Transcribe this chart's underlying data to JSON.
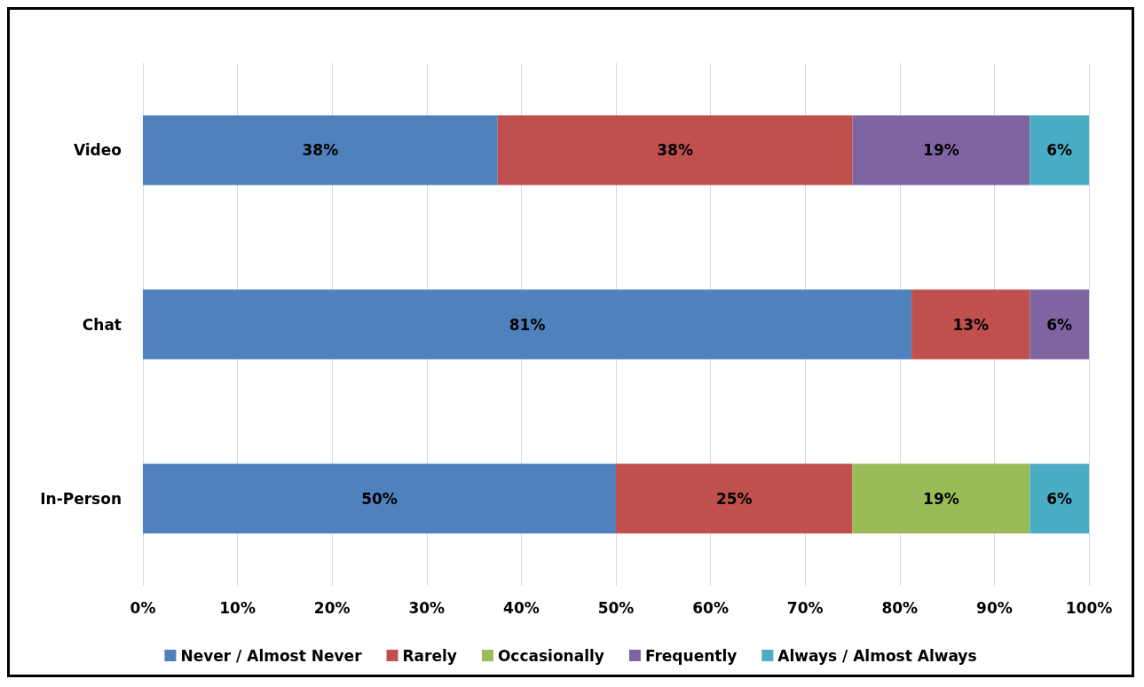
{
  "chart_data": {
    "type": "bar",
    "orientation": "horizontal",
    "stacked": true,
    "categories": [
      "Video",
      "Chat",
      "In-Person"
    ],
    "series": [
      {
        "name": "Never / Almost Never",
        "color": "#4f81bd",
        "values": [
          37.5,
          81.25,
          50
        ],
        "value_labels": [
          "38%",
          "81%",
          "50%"
        ]
      },
      {
        "name": "Rarely",
        "color": "#c0504d",
        "values": [
          37.5,
          12.5,
          25
        ],
        "value_labels": [
          "38%",
          "13%",
          "25%"
        ]
      },
      {
        "name": "Occasionally",
        "color": "#9bbb59",
        "values": [
          null,
          null,
          18.75
        ],
        "value_labels": [
          null,
          null,
          "19%"
        ]
      },
      {
        "name": "Frequently",
        "color": "#8064a2",
        "values": [
          18.75,
          6.25,
          null
        ],
        "value_labels": [
          "19%",
          "6%",
          null
        ]
      },
      {
        "name": "Always / Almost Always",
        "color": "#4bacc6",
        "values": [
          6.25,
          null,
          6.25
        ],
        "value_labels": [
          "6%",
          null,
          "6%"
        ]
      }
    ],
    "xlim": [
      0,
      100
    ],
    "xticks": [
      {
        "value": 0,
        "label": "0%"
      },
      {
        "value": 10,
        "label": "10%"
      },
      {
        "value": 20,
        "label": "20%"
      },
      {
        "value": 30,
        "label": "30%"
      },
      {
        "value": 40,
        "label": "40%"
      },
      {
        "value": 50,
        "label": "50%"
      },
      {
        "value": 60,
        "label": "60%"
      },
      {
        "value": 70,
        "label": "70%"
      },
      {
        "value": 80,
        "label": "80%"
      },
      {
        "value": 90,
        "label": "90%"
      },
      {
        "value": 100,
        "label": "100%"
      }
    ],
    "grid": "x",
    "legend": "bottom"
  }
}
